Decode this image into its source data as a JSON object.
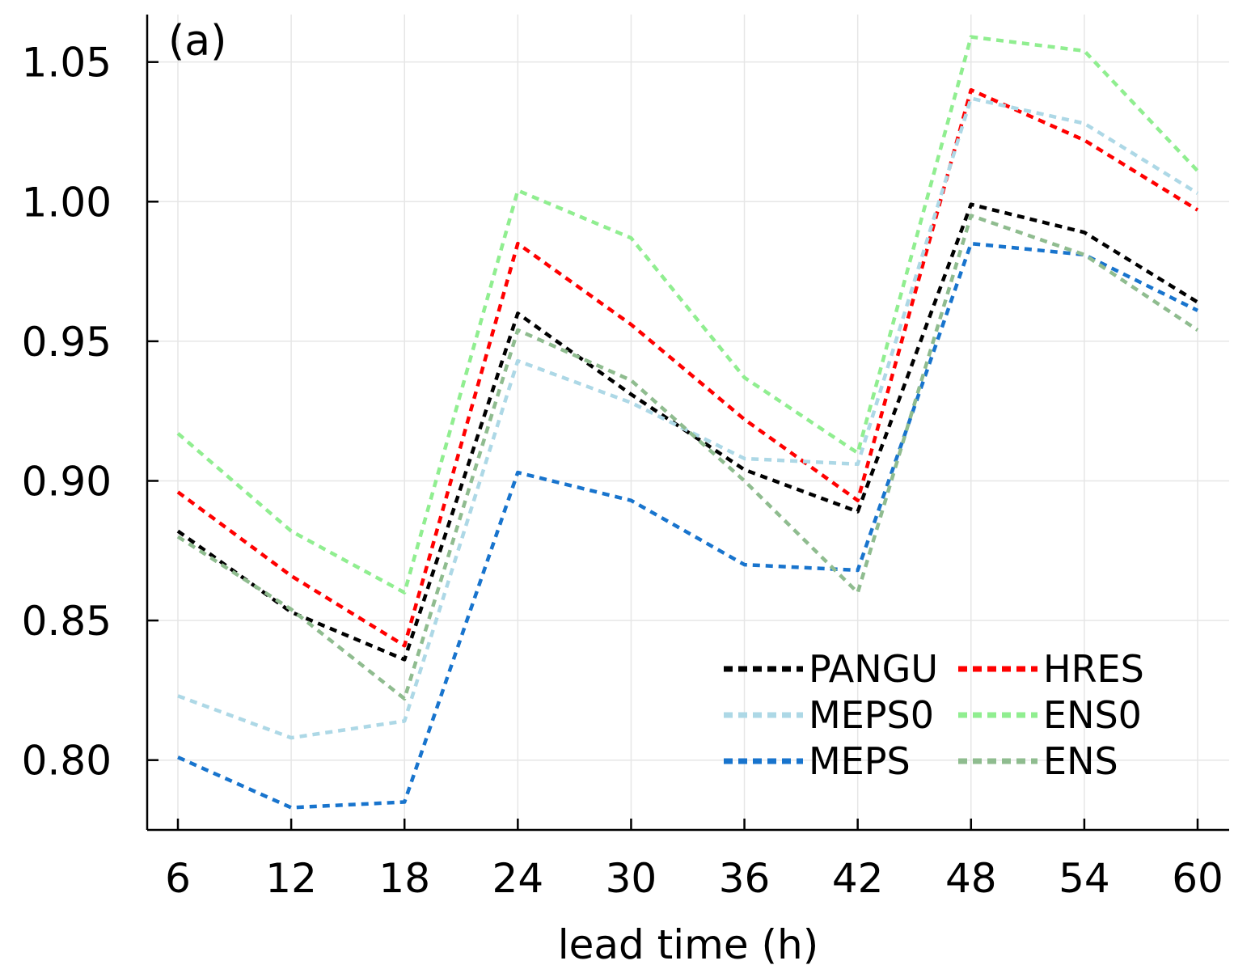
{
  "chart_data": {
    "type": "line",
    "panel_label": "(a)",
    "xlabel": "lead time (h)",
    "ylabel": "",
    "x": [
      6,
      12,
      18,
      24,
      30,
      36,
      42,
      48,
      54,
      60
    ],
    "xticks": [
      6,
      12,
      18,
      24,
      30,
      36,
      42,
      48,
      54,
      60
    ],
    "ylim": [
      0.775,
      1.067
    ],
    "yticks": [
      0.8,
      0.85,
      0.9,
      0.95,
      1.0,
      1.05
    ],
    "ytick_labels": [
      "0.80",
      "0.85",
      "0.90",
      "0.95",
      "1.00",
      "1.05"
    ],
    "grid": true,
    "legend_position": "bottom-right",
    "series": [
      {
        "name": "PANGU",
        "color": "#000000",
        "values": [
          0.882,
          0.853,
          0.836,
          0.96,
          0.931,
          0.904,
          0.889,
          0.999,
          0.989,
          0.964
        ]
      },
      {
        "name": "HRES",
        "color": "#ff0000",
        "values": [
          0.896,
          0.866,
          0.841,
          0.985,
          0.956,
          0.922,
          0.893,
          1.04,
          1.022,
          0.997
        ]
      },
      {
        "name": "MEPS0",
        "color": "#add8e6",
        "values": [
          0.823,
          0.808,
          0.814,
          0.943,
          0.928,
          0.908,
          0.906,
          1.037,
          1.028,
          1.003
        ]
      },
      {
        "name": "ENS0",
        "color": "#90ee90",
        "values": [
          0.917,
          0.882,
          0.86,
          1.004,
          0.987,
          0.937,
          0.91,
          1.059,
          1.054,
          1.011
        ]
      },
      {
        "name": "MEPS",
        "color": "#1874cd",
        "values": [
          0.801,
          0.783,
          0.785,
          0.903,
          0.893,
          0.87,
          0.868,
          0.985,
          0.981,
          0.961
        ]
      },
      {
        "name": "ENS",
        "color": "#8fbc8f",
        "values": [
          0.88,
          0.854,
          0.822,
          0.954,
          0.936,
          0.9,
          0.86,
          0.995,
          0.981,
          0.954
        ]
      }
    ]
  }
}
